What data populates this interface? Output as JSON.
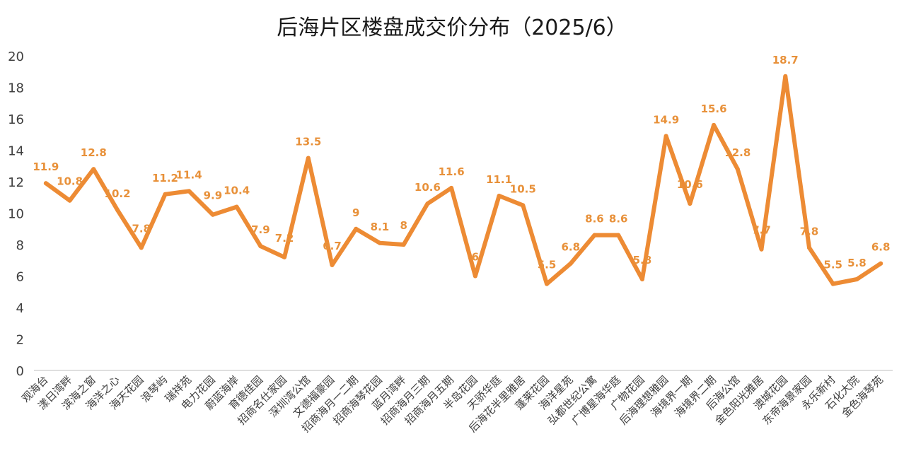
{
  "chart_data": {
    "type": "line",
    "title": "后海片区楼盘成交价分布（2025/6）",
    "xlabel": "",
    "ylabel": "",
    "ylim": [
      0,
      20
    ],
    "yticks": [
      0,
      2,
      4,
      6,
      8,
      10,
      12,
      14,
      16,
      18,
      20
    ],
    "grid": false,
    "legend": "none",
    "line_color": "#ED8B34",
    "label_color": "#E8913A",
    "categories": [
      "观海台",
      "漾日湾畔",
      "滨海之窗",
      "海洋之心",
      "海天花园",
      "浪琴屿",
      "瑞祥苑",
      "电力花园",
      "蔚蓝海岸",
      "育德佳园",
      "招商名仕家园",
      "深圳湾公馆",
      "文德福豪园",
      "招商海月一二期",
      "招商海琴花园",
      "蓝月湾畔",
      "招商海月三期",
      "招商海月五期",
      "半岛花园",
      "天骄华庭",
      "后海花半里雅居",
      "蓬莱花园",
      "海洋星苑",
      "弘都世纪公寓",
      "广博星海华庭",
      "广物花园",
      "后海理想雅园",
      "海境界一期",
      "海境界二期",
      "后海公馆",
      "金色阳光雅居",
      "澳城花园",
      "东帝海景家园",
      "永乐新村",
      "石化大院",
      "金色海琴苑"
    ],
    "values": [
      11.9,
      10.8,
      12.8,
      10.2,
      7.8,
      11.2,
      11.4,
      9.9,
      10.4,
      7.9,
      7.2,
      13.5,
      6.7,
      9,
      8.1,
      8,
      10.6,
      11.6,
      6,
      11.1,
      10.5,
      5.5,
      6.8,
      8.6,
      8.6,
      5.8,
      14.9,
      10.6,
      15.6,
      12.8,
      7.7,
      18.7,
      7.8,
      5.5,
      5.8,
      6.8
    ],
    "data_labels": [
      "11.9",
      "10.8",
      "12.8",
      "10.2",
      "7.8",
      "11.2",
      "11.4",
      "9.9",
      "10.4",
      "7.9",
      "7.2",
      "13.5",
      "6.7",
      "9",
      "8.1",
      "8",
      "10.6",
      "11.6",
      "6",
      "11.1",
      "10.5",
      "5.5",
      "6.8",
      "8.6",
      "8.6",
      "5.8",
      "14.9",
      "10.6",
      "15.6",
      "12.8",
      "7.7",
      "18.7",
      "7.8",
      "5.5",
      "5.8",
      "6.8"
    ]
  }
}
